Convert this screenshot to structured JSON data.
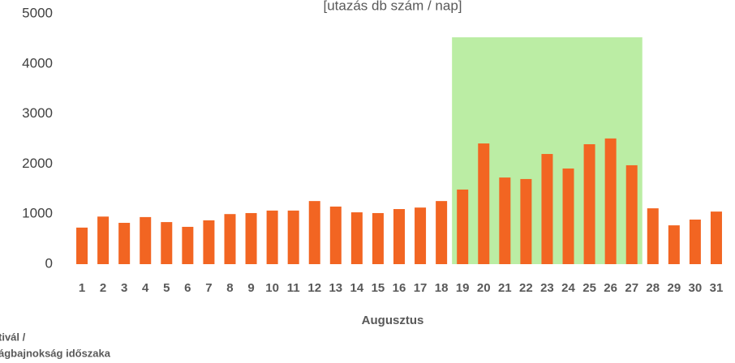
{
  "chart_data": {
    "type": "bar",
    "title": "[utazás db szám / nap]",
    "x_label": "Augusztus",
    "legend_text": [
      "tivál /",
      "ágbajnokság időszaka"
    ],
    "categories": [
      "1",
      "2",
      "3",
      "4",
      "5",
      "6",
      "7",
      "8",
      "9",
      "10",
      "11",
      "12",
      "13",
      "14",
      "15",
      "16",
      "17",
      "18",
      "19",
      "20",
      "21",
      "22",
      "23",
      "24",
      "25",
      "26",
      "27",
      "28",
      "29",
      "30",
      "31"
    ],
    "values": [
      730,
      950,
      825,
      940,
      840,
      745,
      875,
      1000,
      1020,
      1070,
      1070,
      1260,
      1150,
      1035,
      1020,
      1100,
      1130,
      1260,
      1490,
      2410,
      1730,
      1700,
      2200,
      1910,
      2395,
      2510,
      1975,
      1115,
      775,
      890,
      1050
    ],
    "color": "#f26522",
    "ylim": [
      0,
      5000
    ],
    "yticks": [
      0,
      1000,
      2000,
      3000,
      4000,
      5000
    ],
    "grid": false,
    "highlight": {
      "from": "19",
      "to": "27",
      "top": 4530,
      "color": "#bbeda4"
    }
  }
}
